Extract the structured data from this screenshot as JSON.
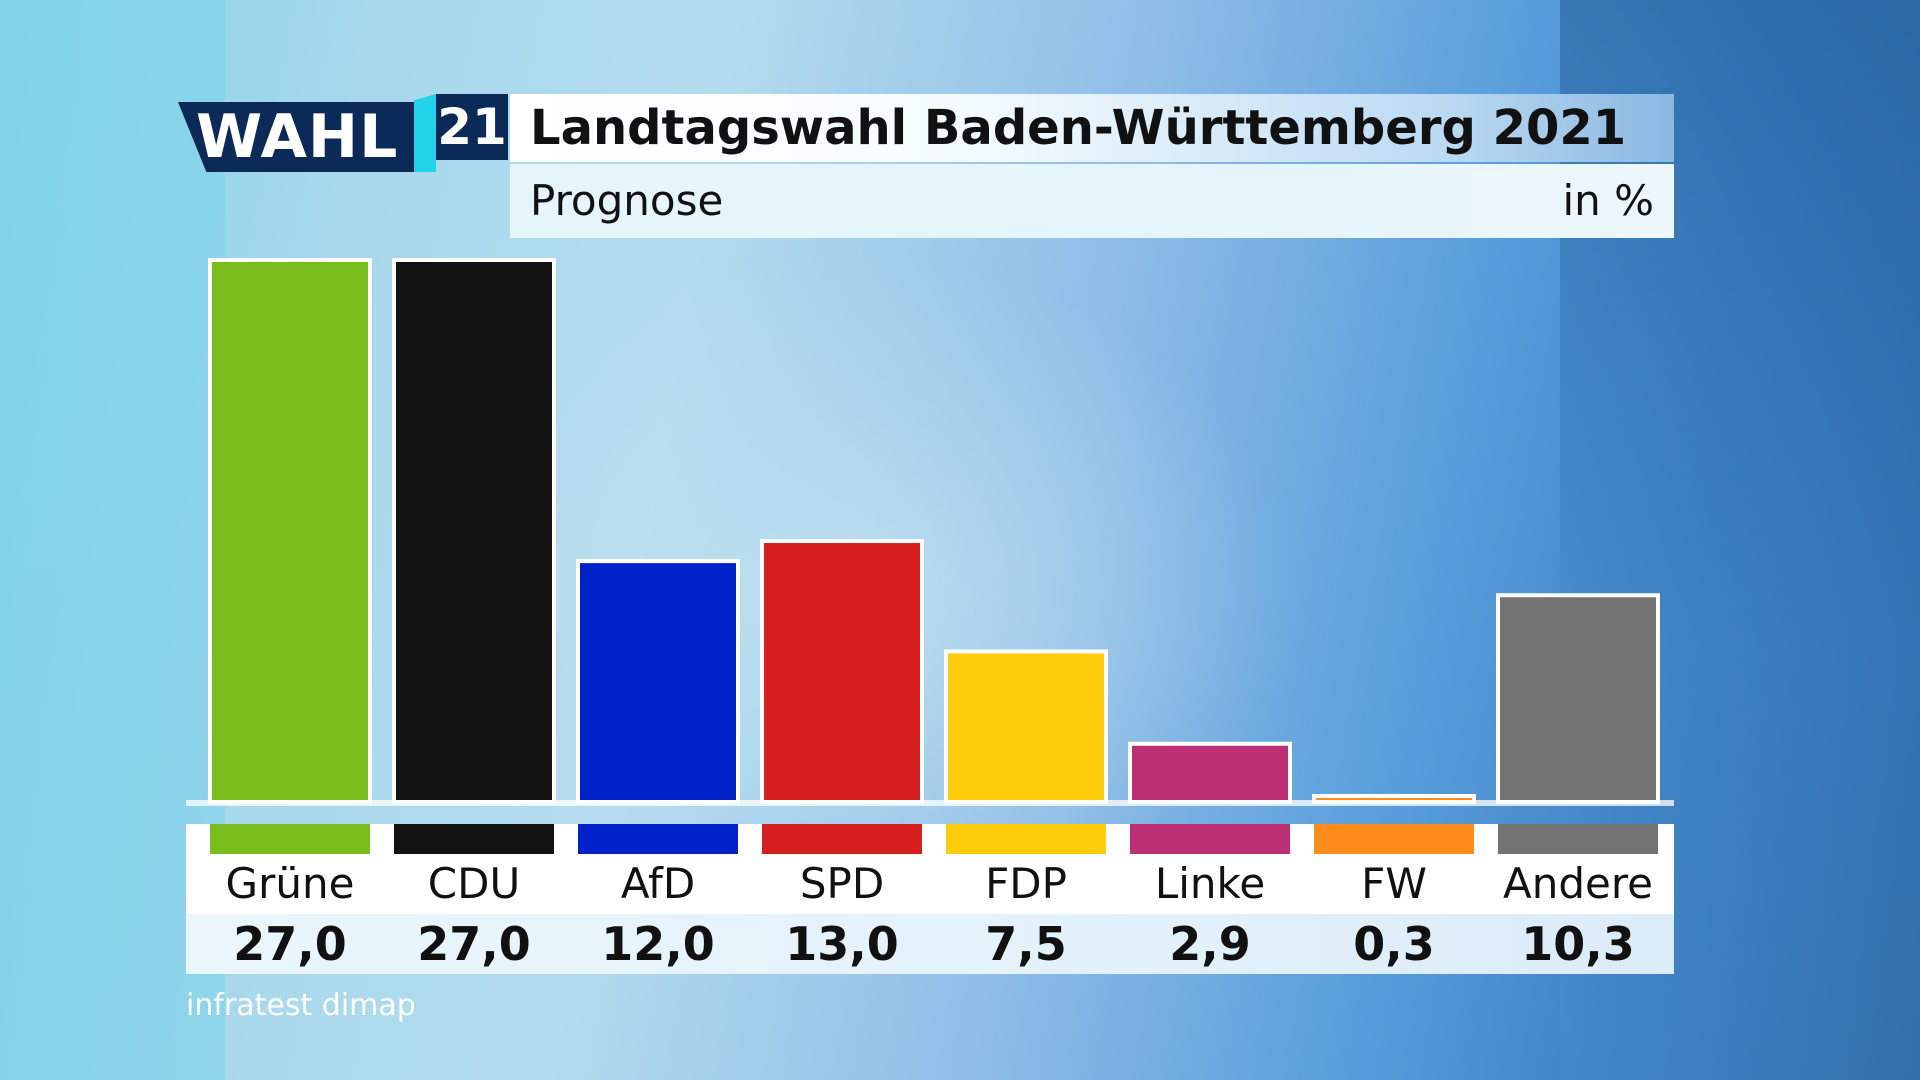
{
  "logo": {
    "wahl": "WAHL",
    "year": "21"
  },
  "header": {
    "title": "Landtagswahl Baden-Württemberg 2021",
    "subtitle": "Prognose",
    "unit": "in %"
  },
  "source": "infratest dimap",
  "colors": {
    "Grüne": "#78bd1c",
    "CDU": "#121212",
    "AfD": "#0021c8",
    "SPD": "#d71f1f",
    "FDP": "#ffcc0a",
    "Linke": "#be3075",
    "FW": "#ff8c1a",
    "Andere": "#737373"
  },
  "chart_data": {
    "type": "bar",
    "title": "Landtagswahl Baden-Württemberg 2021",
    "subtitle": "Prognose",
    "ylabel": "in %",
    "categories": [
      "Grüne",
      "CDU",
      "AfD",
      "SPD",
      "FDP",
      "Linke",
      "FW",
      "Andere"
    ],
    "values": [
      27.0,
      27.0,
      12.0,
      13.0,
      7.5,
      2.9,
      0.3,
      10.3
    ],
    "value_labels": [
      "27,0",
      "27,0",
      "12,0",
      "13,0",
      "7,5",
      "2,9",
      "0,3",
      "10,3"
    ],
    "ylim": [
      0,
      27.0
    ],
    "grid": false
  }
}
